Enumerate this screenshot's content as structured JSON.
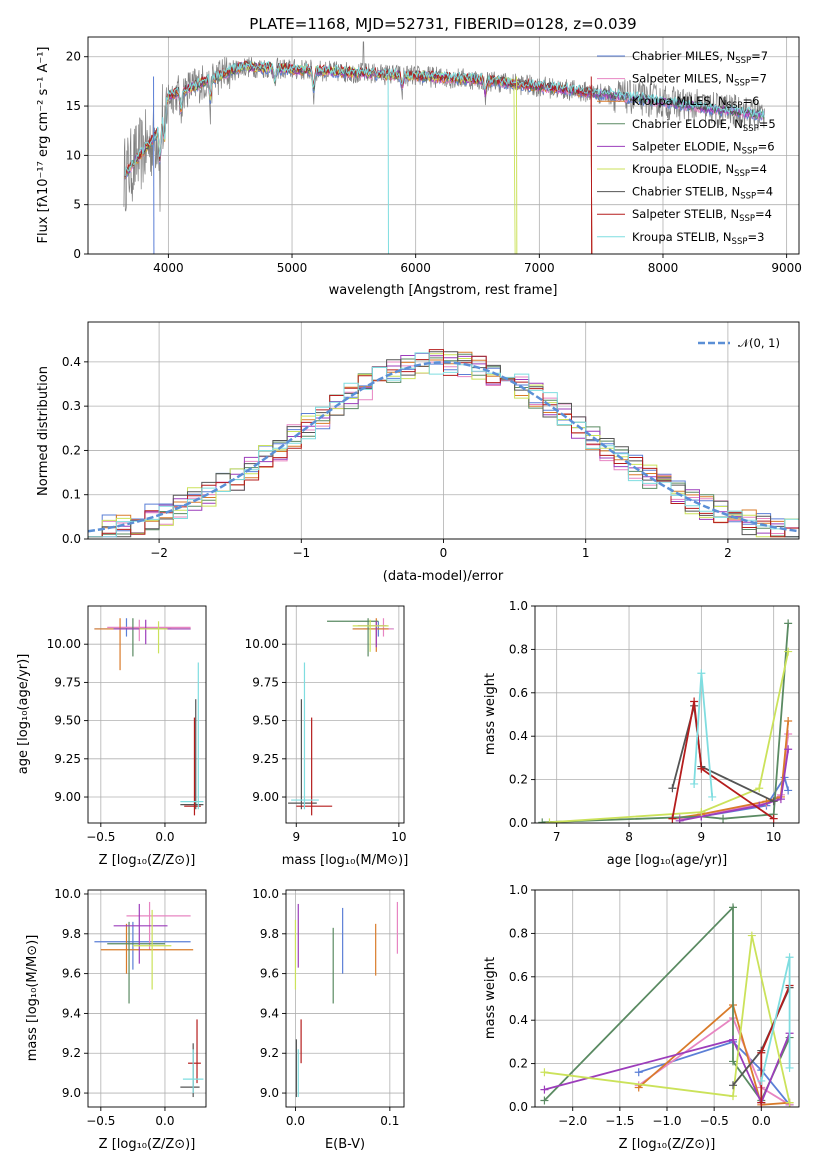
{
  "figure": {
    "title": "PLATE=1168, MJD=52731, FIBERID=0128, z=0.039"
  },
  "colors": {
    "chabrier_miles": "#5b7fd6",
    "salpeter_miles": "#e785c2",
    "kroupa_miles": "#d97b2a",
    "chabrier_elodie": "#5a8a62",
    "salpeter_elodie": "#9c3dbb",
    "kroupa_elodie": "#cbe25a",
    "chabrier_stelib": "#555555",
    "salpeter_stelib": "#b51d1d",
    "kroupa_stelib": "#7fdde0",
    "data": "#7f7f7f",
    "normal": "#5b8fd6"
  },
  "chart_data": [
    {
      "id": "spectrum",
      "type": "line",
      "title": "PLATE=1168, MJD=52731, FIBERID=0128, z=0.039",
      "xlabel": "wavelength [Angstrom, rest frame]",
      "ylabel": "Flux [fλ10⁻¹⁷ erg cm⁻² s⁻¹ A⁻¹]",
      "xlim": [
        3350,
        9100
      ],
      "ylim": [
        0,
        22
      ],
      "xticks": [
        "4000",
        "5000",
        "6000",
        "7000",
        "8000",
        "9000"
      ],
      "yticks": [
        "0",
        "5",
        "10",
        "15",
        "20"
      ],
      "legend_position": "top-right",
      "series": [
        {
          "name": "Chabrier MILES, N",
          "sub": "SSP",
          "eq": "=7",
          "color": "#5b7fd6"
        },
        {
          "name": "Salpeter MILES, N",
          "sub": "SSP",
          "eq": "=7",
          "color": "#e785c2"
        },
        {
          "name": "Kroupa MILES, N",
          "sub": "SSP",
          "eq": "=6",
          "color": "#d97b2a"
        },
        {
          "name": "Chabrier ELODIE, N",
          "sub": "SSP",
          "eq": "=5",
          "color": "#5a8a62"
        },
        {
          "name": "Salpeter ELODIE, N",
          "sub": "SSP",
          "eq": "=6",
          "color": "#9c3dbb"
        },
        {
          "name": "Kroupa ELODIE, N",
          "sub": "SSP",
          "eq": "=4",
          "color": "#cbe25a"
        },
        {
          "name": "Chabrier STELIB, N",
          "sub": "SSP",
          "eq": "=4",
          "color": "#555555"
        },
        {
          "name": "Salpeter STELIB, N",
          "sub": "SSP",
          "eq": "=4",
          "color": "#b51d1d"
        },
        {
          "name": "Kroupa STELIB, N",
          "sub": "SSP",
          "eq": "=3",
          "color": "#7fdde0"
        }
      ]
    },
    {
      "id": "residuals",
      "type": "histogram",
      "xlabel": "(data-model)/error",
      "ylabel": "Normed distribution",
      "xlim": [
        -2.5,
        2.5
      ],
      "ylim": [
        0,
        0.49
      ],
      "xticks": [
        "−2",
        "−1",
        "0",
        "1",
        "2"
      ],
      "yticks": [
        "0.0",
        "0.1",
        "0.2",
        "0.3",
        "0.4"
      ],
      "legend": "𝒩(0, 1)",
      "legend_position": "top-right"
    },
    {
      "id": "age_vs_Z",
      "type": "errorbar",
      "xlabel": "Z [log₁₀(Z/Z⊙)]",
      "ylabel": "age  [log₁₀(age/yr)]",
      "xlim": [
        -0.6,
        0.32
      ],
      "ylim": [
        8.83,
        10.25
      ],
      "xticks": [
        "−0.5",
        "0.0"
      ],
      "yticks": [
        "9.00",
        "9.25",
        "9.50",
        "9.75",
        "10.00"
      ]
    },
    {
      "id": "age_vs_mass",
      "type": "errorbar",
      "xlabel": "mass [log₁₀(M/M⊙)]",
      "ylabel": "",
      "xlim": [
        8.9,
        10.05
      ],
      "ylim": [
        8.83,
        10.25
      ],
      "xticks": [
        "9",
        "10"
      ],
      "yticks": [
        "9.00",
        "9.25",
        "9.50",
        "9.75",
        "10.00"
      ]
    },
    {
      "id": "weight_vs_age",
      "type": "line",
      "xlabel": "age  [log₁₀(age/yr)]",
      "ylabel": "mass weight",
      "xlim": [
        6.7,
        10.35
      ],
      "ylim": [
        0,
        1
      ],
      "xticks": [
        "7",
        "8",
        "9",
        "10"
      ],
      "yticks": [
        "0.0",
        "0.2",
        "0.4",
        "0.6",
        "0.8",
        "1.0"
      ]
    },
    {
      "id": "mass_vs_Z",
      "type": "errorbar",
      "xlabel": "Z [log₁₀(Z/Z⊙)]",
      "ylabel": "mass [log₁₀(M/M⊙)]",
      "xlim": [
        -0.6,
        0.32
      ],
      "ylim": [
        8.93,
        10.02
      ],
      "xticks": [
        "−0.5",
        "0.0"
      ],
      "yticks": [
        "9.0",
        "9.2",
        "9.4",
        "9.6",
        "9.8",
        "10.0"
      ]
    },
    {
      "id": "mass_vs_ebv",
      "type": "errorbar",
      "xlabel": "E(B-V)",
      "ylabel": "",
      "xlim": [
        -0.01,
        0.115
      ],
      "ylim": [
        8.93,
        10.02
      ],
      "xticks": [
        "0.0",
        "0.1"
      ],
      "yticks": [
        "9.0",
        "9.2",
        "9.4",
        "9.6",
        "9.8",
        "10.0"
      ]
    },
    {
      "id": "weight_vs_Z",
      "type": "line",
      "xlabel": "Z [log₁₀(Z/Z⊙)]",
      "ylabel": "mass weight",
      "xlim": [
        -2.4,
        0.4
      ],
      "ylim": [
        0,
        1
      ],
      "xticks": [
        "−2.0",
        "−1.5",
        "−1.0",
        "−0.5",
        "0.0"
      ],
      "yticks": [
        "0.0",
        "0.2",
        "0.4",
        "0.6",
        "0.8",
        "1.0"
      ]
    }
  ]
}
